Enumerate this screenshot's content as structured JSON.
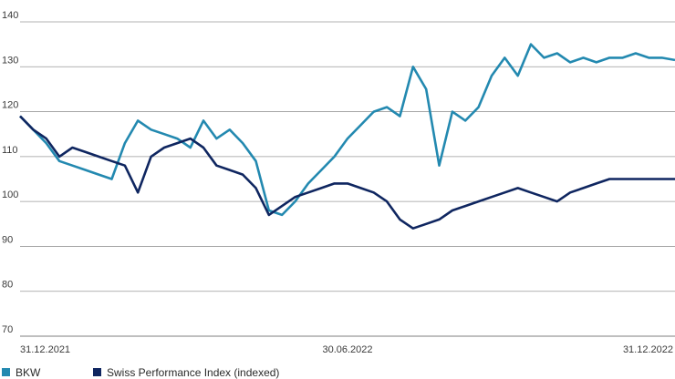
{
  "chart_data": {
    "type": "line",
    "title": "",
    "xlabel": "",
    "ylabel": "",
    "ylim": [
      70,
      140
    ],
    "yticks": [
      70,
      80,
      90,
      100,
      110,
      120,
      130,
      140
    ],
    "xticks": [
      {
        "pos": 0,
        "label": "31.12.2021"
      },
      {
        "pos": 0.5,
        "label": "30.06.2022"
      },
      {
        "pos": 1,
        "label": "31.12.2022"
      }
    ],
    "grid": "horizontal",
    "legend_position": "bottom-left",
    "colors": {
      "BKW": "#2389b0",
      "Swiss Performance Index (indexed)": "#0f2660",
      "grid": "#9a9a9a",
      "axis": "#555555"
    },
    "series": [
      {
        "name": "BKW",
        "x": [
          0,
          0.02,
          0.04,
          0.06,
          0.08,
          0.1,
          0.12,
          0.14,
          0.16,
          0.18,
          0.2,
          0.22,
          0.24,
          0.26,
          0.28,
          0.3,
          0.32,
          0.34,
          0.36,
          0.38,
          0.4,
          0.42,
          0.44,
          0.46,
          0.48,
          0.5,
          0.52,
          0.54,
          0.56,
          0.58,
          0.6,
          0.62,
          0.64,
          0.66,
          0.68,
          0.7,
          0.72,
          0.74,
          0.76,
          0.78,
          0.8,
          0.82,
          0.84,
          0.86,
          0.88,
          0.9,
          0.92,
          0.94,
          0.96,
          0.98,
          1.0
        ],
        "values": [
          119,
          116,
          113,
          109,
          108,
          107,
          106,
          105,
          113,
          118,
          116,
          115,
          114,
          112,
          118,
          114,
          116,
          113,
          109,
          98,
          97,
          100,
          104,
          107,
          110,
          114,
          117,
          120,
          121,
          119,
          130,
          125,
          108,
          120,
          118,
          121,
          128,
          132,
          128,
          135,
          132,
          133,
          131,
          132,
          131,
          132,
          132,
          133,
          132,
          132,
          131.5
        ]
      },
      {
        "name": "Swiss Performance Index (indexed)",
        "x": [
          0,
          0.02,
          0.04,
          0.06,
          0.08,
          0.1,
          0.12,
          0.14,
          0.16,
          0.18,
          0.2,
          0.22,
          0.24,
          0.26,
          0.28,
          0.3,
          0.32,
          0.34,
          0.36,
          0.38,
          0.4,
          0.42,
          0.44,
          0.46,
          0.48,
          0.5,
          0.52,
          0.54,
          0.56,
          0.58,
          0.6,
          0.62,
          0.64,
          0.66,
          0.68,
          0.7,
          0.72,
          0.74,
          0.76,
          0.78,
          0.8,
          0.82,
          0.84,
          0.86,
          0.88,
          0.9,
          0.92,
          0.94,
          0.96,
          0.98,
          1.0
        ],
        "values": [
          119,
          116,
          114,
          110,
          112,
          111,
          110,
          109,
          108,
          102,
          110,
          112,
          113,
          114,
          112,
          108,
          107,
          106,
          103,
          97,
          99,
          101,
          102,
          103,
          104,
          104,
          103,
          102,
          100,
          96,
          94,
          95,
          96,
          98,
          99,
          100,
          101,
          102,
          103,
          102,
          101,
          100,
          102,
          103,
          104,
          105,
          105,
          105,
          105,
          105,
          105
        ]
      }
    ]
  }
}
